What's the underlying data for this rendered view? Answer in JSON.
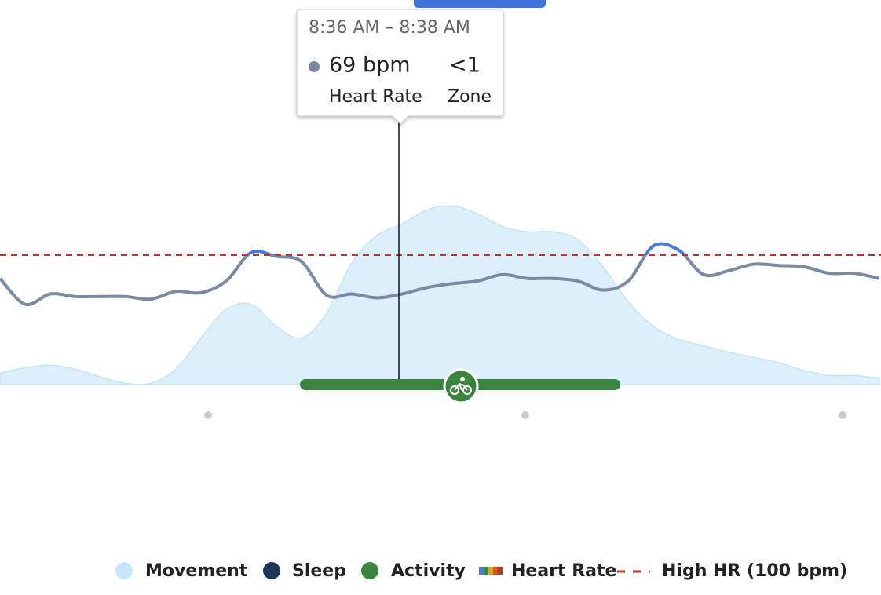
{
  "chart_data": {
    "type": "line",
    "ylim": [
      0,
      297
    ],
    "high_hr": 100,
    "series": [
      {
        "name": "Movement",
        "color": "#dcf0fc",
        "values": [
          9,
          13,
          15,
          12,
          6,
          1,
          1,
          12,
          36,
          58,
          62,
          45,
          36,
          55,
          94,
          115,
          124,
          135,
          138,
          132,
          122,
          118,
          118,
          112,
          91,
          64,
          45,
          35,
          30,
          25,
          21,
          17,
          11,
          7,
          7,
          5
        ]
      },
      {
        "name": "Heart Rate",
        "color": "#7a8aa3",
        "values": [
          82,
          62,
          70,
          68,
          68,
          68,
          66,
          72,
          71,
          80,
          102,
          99,
          95,
          69,
          70,
          67,
          70,
          75,
          78,
          80,
          85,
          82,
          82,
          80,
          73,
          80,
          107,
          104,
          85,
          88,
          93,
          92,
          91,
          86,
          86,
          82
        ]
      }
    ],
    "high_color": "#4a7bd6",
    "tooltip": {
      "time": "8:36 AM – 8:38 AM",
      "value": "69 bpm",
      "value_label": "Heart Rate",
      "zone": "<1",
      "zone_label": "Zone"
    },
    "legend": [
      {
        "label": "Movement",
        "color": "#c5e6fb"
      },
      {
        "label": "Sleep",
        "color": "#1d3557"
      },
      {
        "label": "Activity",
        "color": "#3a8440"
      },
      {
        "label": "Heart Rate"
      },
      {
        "label": "High HR (100 bpm)",
        "color": "#b03a2e"
      }
    ]
  }
}
